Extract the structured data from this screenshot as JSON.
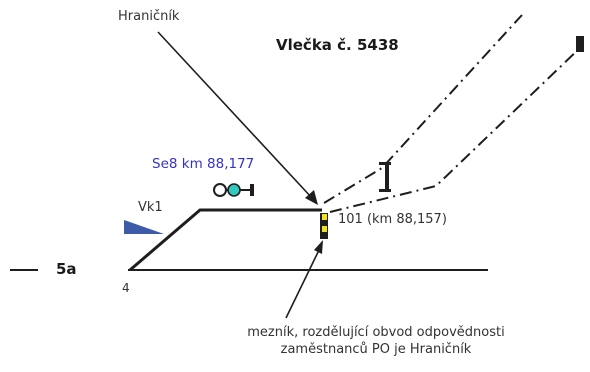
{
  "labels": {
    "title": "Vlečka č. 5438",
    "hranicnik": "Hraničník",
    "signal": "Se8 km 88,177",
    "vk": "Vk1",
    "track_label": "5a",
    "switch_number": "4",
    "marker": "101 (km 88,157)",
    "note_line1": "mezník, rozdělující obvod odpovědnosti",
    "note_line2": "zaměstnanců PO je Hraničník"
  },
  "colors": {
    "line": "#1e1e1e",
    "signal_text": "#3333cc",
    "vk_fill": "#3d5ba8",
    "marker_yellow": "#f0e020",
    "lamp_cyan": "#30c9c0"
  }
}
